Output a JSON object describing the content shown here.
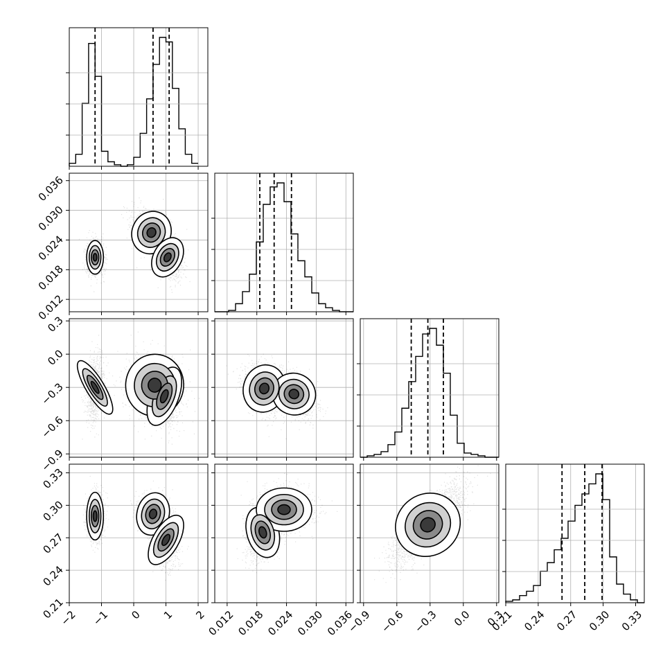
{
  "chart_data": {
    "type": "corner",
    "title": "",
    "variables": [
      {
        "ticks": [
          -2,
          -1,
          0,
          1,
          2
        ],
        "tick_labels": [
          "−2",
          "−1",
          "0",
          "1",
          "2"
        ],
        "range": [
          -2.0,
          2.3
        ]
      },
      {
        "ticks": [
          0.012,
          0.018,
          0.024,
          0.03,
          0.036
        ],
        "tick_labels": [
          "0.012",
          "0.018",
          "0.024",
          "0.030",
          "0.036"
        ],
        "range": [
          0.0095,
          0.0375
        ]
      },
      {
        "ticks": [
          -0.9,
          -0.6,
          -0.3,
          0.0,
          0.3
        ],
        "tick_labels": [
          "−0.9",
          "−0.6",
          "−0.3",
          "0.0",
          "0.3"
        ],
        "range": [
          -0.93,
          0.32
        ]
      },
      {
        "ticks": [
          0.21,
          0.24,
          0.27,
          0.3,
          0.33
        ],
        "tick_labels": [
          "0.21",
          "0.24",
          "0.27",
          "0.30",
          "0.33"
        ],
        "range": [
          0.21,
          0.338
        ]
      }
    ],
    "quantiles": [
      [
        -1.2,
        0.6,
        1.1
      ],
      [
        0.0186,
        0.0215,
        0.025
      ],
      [
        -0.47,
        -0.32,
        -0.18
      ],
      [
        0.262,
        0.283,
        0.299
      ]
    ],
    "histograms": [
      {
        "bins": [
          -2.0,
          -1.8,
          -1.6,
          -1.4,
          -1.2,
          -1.0,
          -0.8,
          -0.6,
          -0.4,
          -0.2,
          0.0,
          0.2,
          0.4,
          0.6,
          0.8,
          1.0,
          1.2,
          1.4,
          1.6,
          1.8,
          2.0
        ],
        "counts": [
          0.02,
          0.08,
          0.42,
          0.82,
          0.6,
          0.1,
          0.03,
          0.01,
          0.0,
          0.01,
          0.06,
          0.22,
          0.45,
          0.68,
          0.86,
          0.83,
          0.52,
          0.25,
          0.08,
          0.02
        ]
      },
      {
        "bins": [
          0.0095,
          0.0109,
          0.0123,
          0.0137,
          0.0151,
          0.0165,
          0.0179,
          0.0193,
          0.0207,
          0.0221,
          0.0235,
          0.0249,
          0.0263,
          0.0277,
          0.0291,
          0.0305,
          0.0319,
          0.0333,
          0.0347,
          0.0361,
          0.0375
        ],
        "counts": [
          0.0,
          0.0,
          0.01,
          0.06,
          0.15,
          0.28,
          0.52,
          0.8,
          0.93,
          0.96,
          0.82,
          0.58,
          0.38,
          0.26,
          0.14,
          0.06,
          0.03,
          0.01,
          0.0,
          0.0
        ]
      },
      {
        "bins": [
          -0.93,
          -0.8675,
          -0.805,
          -0.7425,
          -0.68,
          -0.6175,
          -0.555,
          -0.4925,
          -0.43,
          -0.3675,
          -0.305,
          -0.2425,
          -0.18,
          -0.1175,
          -0.055,
          0.0075,
          0.07,
          0.1325,
          0.195,
          0.2575,
          0.32
        ],
        "counts": [
          0.0,
          0.01,
          0.02,
          0.04,
          0.09,
          0.18,
          0.35,
          0.54,
          0.72,
          0.88,
          0.92,
          0.8,
          0.6,
          0.3,
          0.1,
          0.03,
          0.02,
          0.01,
          0.0,
          0.0
        ]
      },
      {
        "bins": [
          0.21,
          0.2164,
          0.2228,
          0.2292,
          0.2356,
          0.242,
          0.2484,
          0.2548,
          0.2612,
          0.2676,
          0.274,
          0.2804,
          0.2868,
          0.2932,
          0.2996,
          0.306,
          0.3124,
          0.3188,
          0.3252,
          0.3316,
          0.338
        ],
        "counts": [
          0.01,
          0.02,
          0.05,
          0.08,
          0.12,
          0.22,
          0.28,
          0.37,
          0.45,
          0.57,
          0.68,
          0.76,
          0.83,
          0.9,
          0.72,
          0.32,
          0.13,
          0.06,
          0.02,
          0.0
        ]
      }
    ],
    "pairs": [
      {
        "row": 1,
        "col": 0,
        "modes": [
          {
            "x": -1.2,
            "y": 0.0205,
            "sx": 0.13,
            "sy": 0.0017,
            "rho": 0.0,
            "w": 0.38
          },
          {
            "x": 0.55,
            "y": 0.0255,
            "sx": 0.3,
            "sy": 0.0023,
            "rho": -0.45,
            "w": 0.32
          },
          {
            "x": 1.05,
            "y": 0.0205,
            "sx": 0.22,
            "sy": 0.0022,
            "rho": -0.4,
            "w": 0.3
          }
        ]
      },
      {
        "row": 2,
        "col": 0,
        "modes": [
          {
            "x": -1.2,
            "y": -0.3,
            "sx": 0.14,
            "sy": 0.14,
            "rho": 0.2,
            "w": 0.38
          },
          {
            "x": 0.65,
            "y": -0.28,
            "sx": 0.45,
            "sy": 0.14,
            "rho": -0.1,
            "w": 0.35
          },
          {
            "x": 0.95,
            "y": -0.38,
            "sx": 0.22,
            "sy": 0.14,
            "rho": -0.2,
            "w": 0.27
          }
        ]
      },
      {
        "row": 3,
        "col": 0,
        "modes": [
          {
            "x": -1.2,
            "y": 0.29,
            "sx": 0.13,
            "sy": 0.011,
            "rho": 0.0,
            "w": 0.38
          },
          {
            "x": 0.6,
            "y": 0.292,
            "sx": 0.25,
            "sy": 0.01,
            "rho": -0.2,
            "w": 0.32
          },
          {
            "x": 1.0,
            "y": 0.268,
            "sx": 0.2,
            "sy": 0.013,
            "rho": -0.3,
            "w": 0.3
          }
        ]
      },
      {
        "row": 2,
        "col": 1,
        "modes": [
          {
            "x": 0.0195,
            "y": -0.31,
            "sx": 0.0021,
            "sy": 0.11,
            "rho": -0.3,
            "w": 0.55
          },
          {
            "x": 0.0255,
            "y": -0.36,
            "sx": 0.0022,
            "sy": 0.1,
            "rho": -0.5,
            "w": 0.45
          }
        ]
      },
      {
        "row": 3,
        "col": 1,
        "modes": [
          {
            "x": 0.0192,
            "y": 0.275,
            "sx": 0.0016,
            "sy": 0.012,
            "rho": 0.2,
            "w": 0.55
          },
          {
            "x": 0.0235,
            "y": 0.296,
            "sx": 0.0028,
            "sy": 0.01,
            "rho": 0.0,
            "w": 0.45
          }
        ]
      },
      {
        "row": 3,
        "col": 2,
        "modes": [
          {
            "x": -0.32,
            "y": 0.282,
            "sx": 0.15,
            "sy": 0.017,
            "rho": 0.78,
            "w": 1.0
          }
        ]
      }
    ]
  }
}
